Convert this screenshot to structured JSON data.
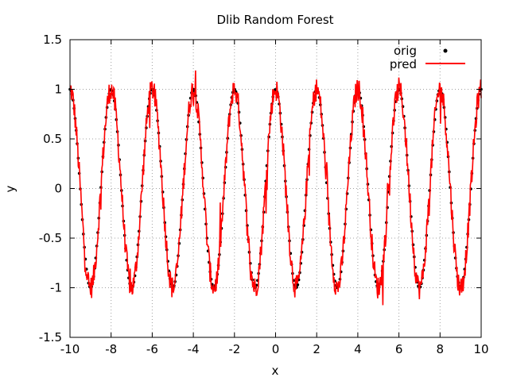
{
  "chart_data": {
    "type": "line",
    "title": "Dlib Random Forest",
    "xlabel": "x",
    "ylabel": "y",
    "xlim": [
      -10,
      10
    ],
    "ylim": [
      -1.5,
      1.5
    ],
    "x_ticks": [
      -10,
      -8,
      -6,
      -4,
      -2,
      0,
      2,
      4,
      6,
      8,
      10
    ],
    "y_ticks": [
      -1.5,
      -1,
      -0.5,
      0,
      0.5,
      1,
      1.5
    ],
    "grid": true,
    "legend": "top-right",
    "series": [
      {
        "name": "orig",
        "style": "points",
        "color": "#000000",
        "function": "cos(pi*x)",
        "x_range": [
          -10,
          10
        ],
        "n_points": 400
      },
      {
        "name": "pred",
        "style": "line",
        "color": "#ff0000",
        "function": "cos(pi*x) + noise",
        "x_range": [
          -10,
          10
        ],
        "n_points": 800,
        "noise_amplitude": 0.12
      }
    ]
  }
}
